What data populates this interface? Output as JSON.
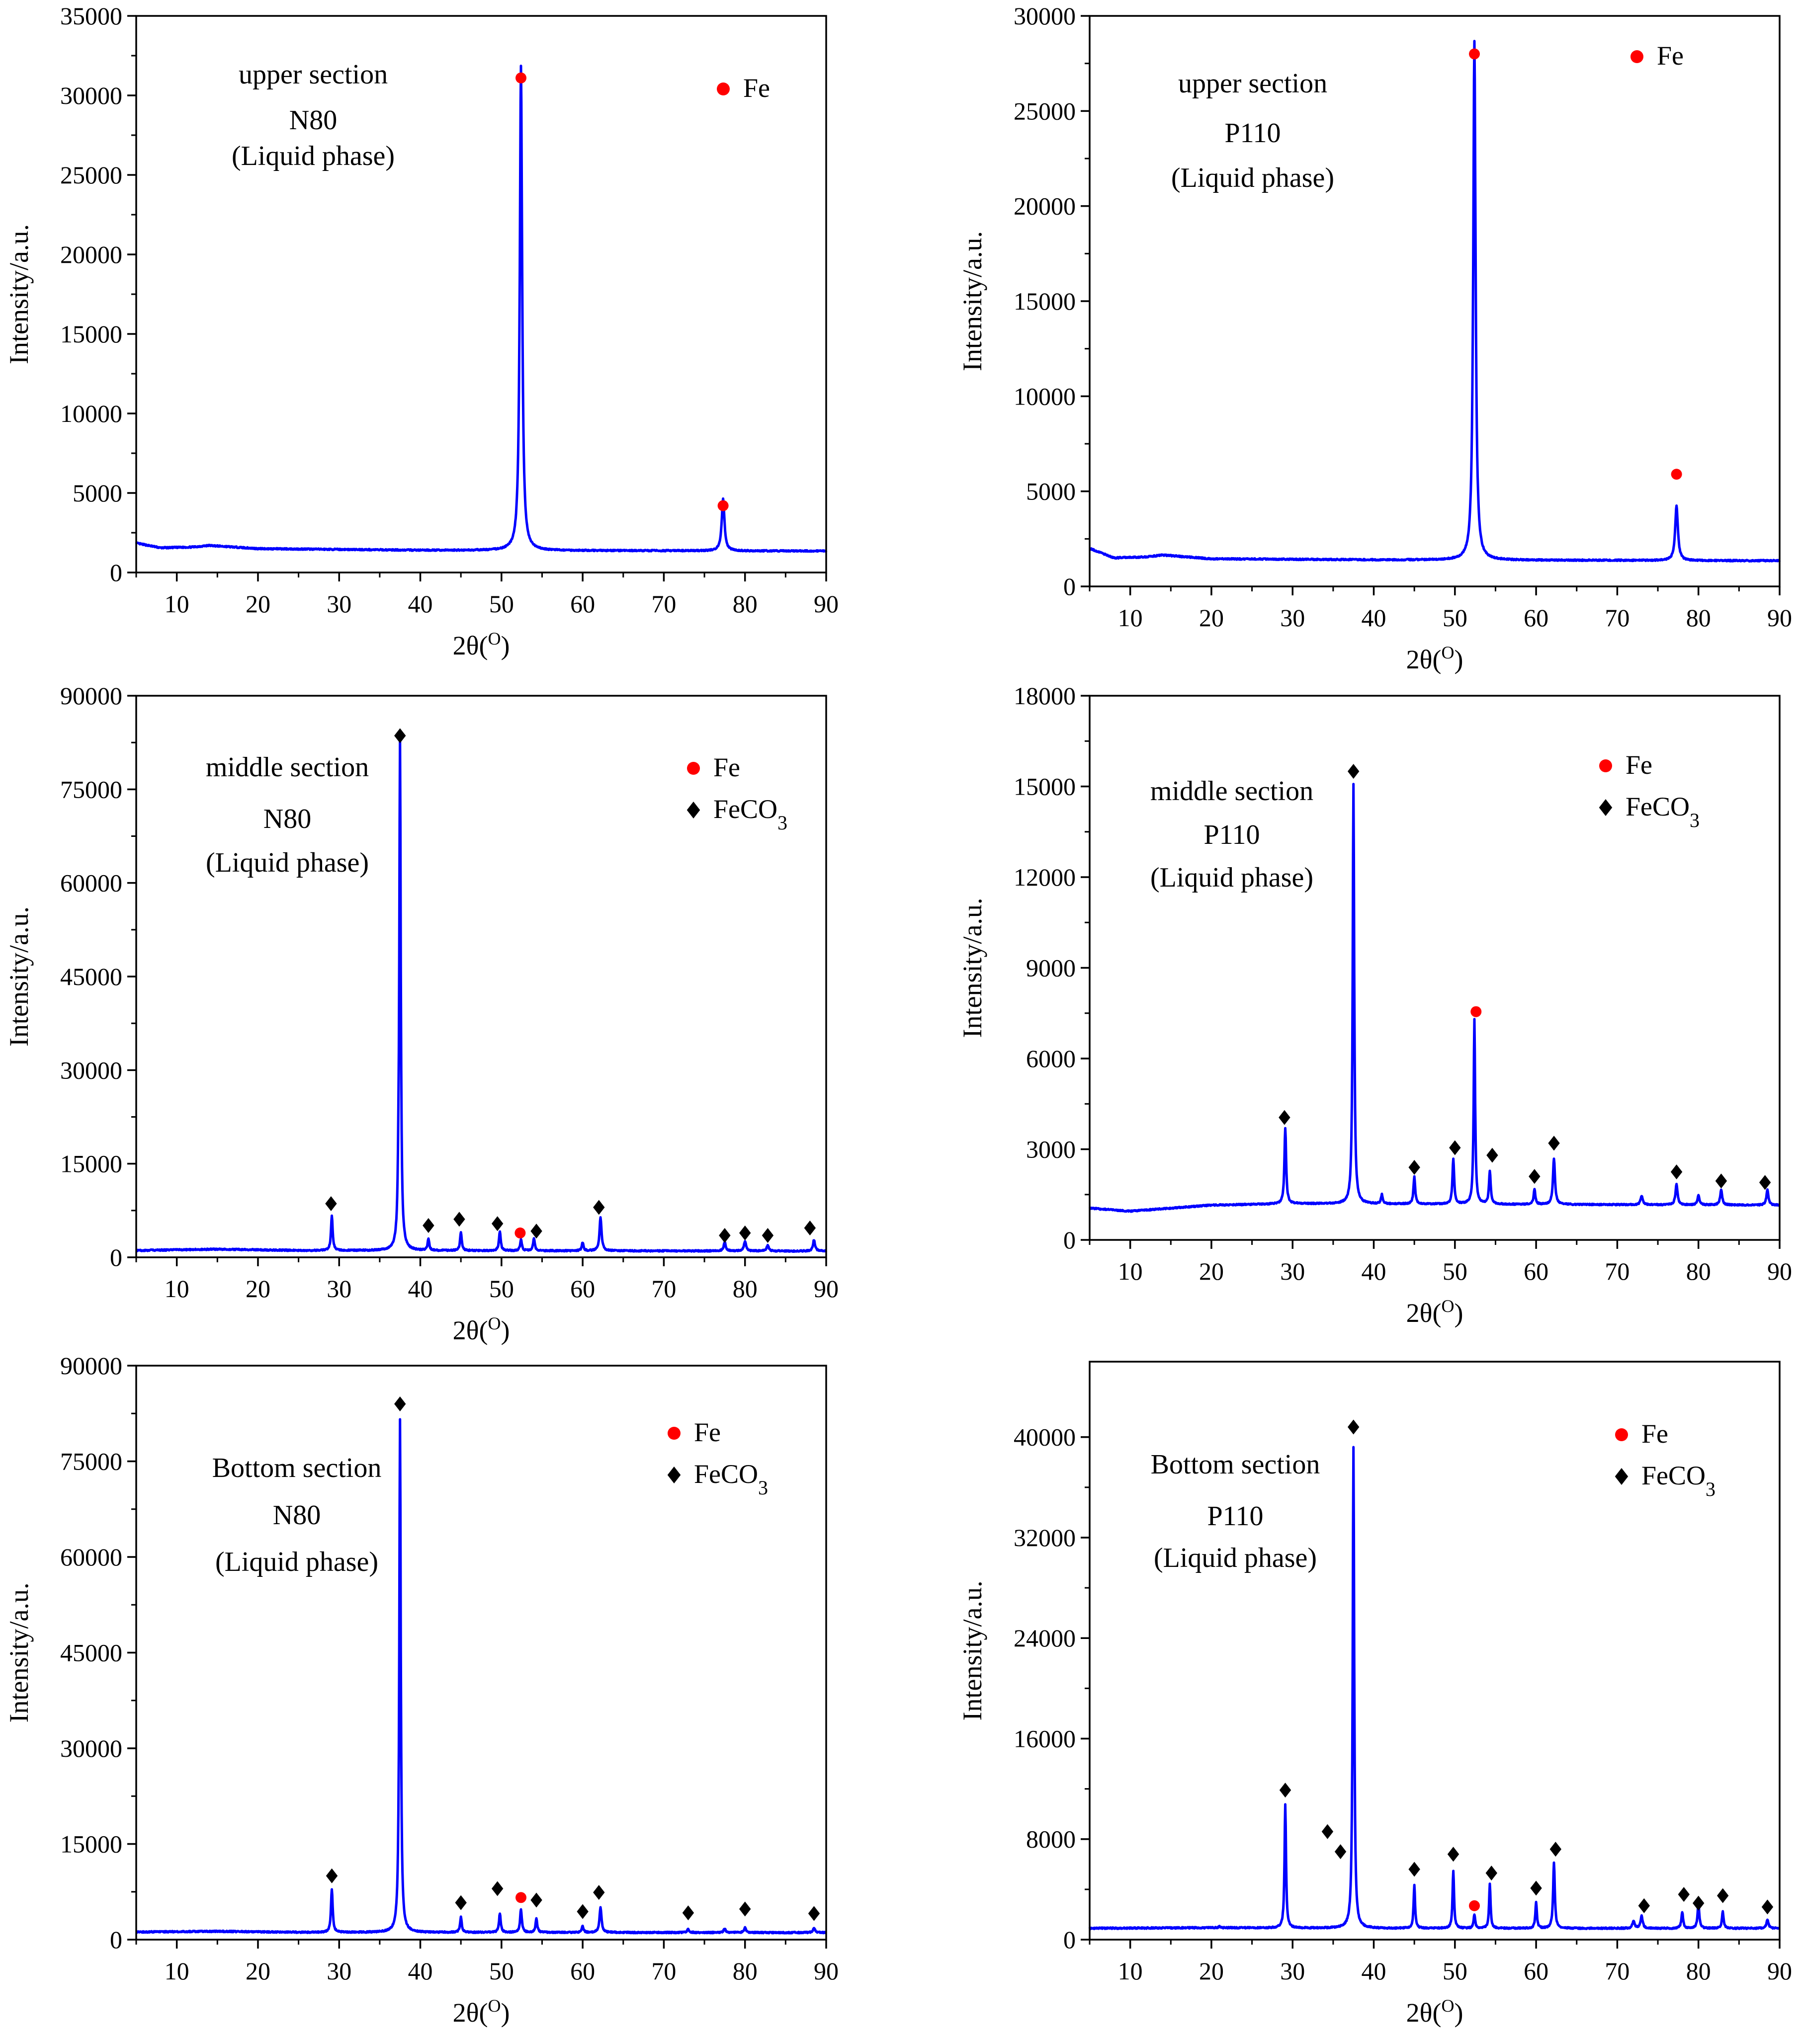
{
  "chart_data": [
    {
      "type": "line",
      "annotation_lines": [
        "upper section",
        "N80",
        "(Liquid phase)"
      ],
      "xlabel": "2θ(O)",
      "ylabel": "Intensity/a.u.",
      "xlim": [
        5,
        90
      ],
      "ylim": [
        0,
        35000
      ],
      "xticks": [
        10,
        20,
        30,
        40,
        50,
        60,
        70,
        80,
        90
      ],
      "yticks": [
        0,
        5000,
        10000,
        15000,
        20000,
        25000,
        30000,
        35000
      ],
      "legend": [
        {
          "label": "Fe",
          "marker": "dot"
        }
      ],
      "legend_position": "top-right",
      "baseline": [
        [
          5,
          1850
        ],
        [
          8,
          1550
        ],
        [
          12,
          1600
        ],
        [
          14,
          1700
        ],
        [
          20,
          1500
        ],
        [
          40,
          1400
        ],
        [
          90,
          1350
        ]
      ],
      "peaks": [
        {
          "x": 52.4,
          "y": 30500,
          "w": 0.35
        },
        {
          "x": 77.3,
          "y": 3300,
          "w": 0.4
        }
      ],
      "markers": [
        {
          "x": 52.4,
          "y": 31100,
          "type": "dot"
        },
        {
          "x": 77.3,
          "y": 4200,
          "type": "dot"
        }
      ]
    },
    {
      "type": "line",
      "annotation_lines": [
        "upper section",
        "P110",
        "(Liquid phase)"
      ],
      "xlabel": "2θ(O)",
      "ylabel": "Intensity/a.u.",
      "xlim": [
        5,
        90
      ],
      "ylim": [
        0,
        30000
      ],
      "xticks": [
        10,
        20,
        30,
        40,
        50,
        60,
        70,
        80,
        90
      ],
      "yticks": [
        0,
        5000,
        10000,
        15000,
        20000,
        25000,
        30000
      ],
      "legend": [
        {
          "label": "Fe",
          "marker": "dot"
        }
      ],
      "legend_position": "top-right",
      "baseline": [
        [
          5,
          2000
        ],
        [
          8,
          1500
        ],
        [
          12,
          1550
        ],
        [
          14,
          1650
        ],
        [
          20,
          1450
        ],
        [
          40,
          1400
        ],
        [
          90,
          1350
        ]
      ],
      "peaks": [
        {
          "x": 52.4,
          "y": 27300,
          "w": 0.35
        },
        {
          "x": 77.3,
          "y": 2900,
          "w": 0.4
        }
      ],
      "markers": [
        {
          "x": 52.4,
          "y": 28000,
          "type": "dot"
        },
        {
          "x": 77.3,
          "y": 5900,
          "type": "dot"
        }
      ]
    },
    {
      "type": "line",
      "annotation_lines": [
        "middle section",
        "N80",
        "(Liquid phase)"
      ],
      "xlabel": "2θ(O)",
      "ylabel": "Intensity/a.u.",
      "xlim": [
        5,
        90
      ],
      "ylim": [
        0,
        90000
      ],
      "xticks": [
        10,
        20,
        30,
        40,
        50,
        60,
        70,
        80,
        90
      ],
      "yticks": [
        0,
        15000,
        30000,
        45000,
        60000,
        75000,
        90000
      ],
      "legend": [
        {
          "label": "Fe",
          "marker": "dot"
        },
        {
          "label": "FeCO3",
          "marker": "diamond"
        }
      ],
      "legend_position": "top-right",
      "baseline": [
        [
          5,
          1100
        ],
        [
          15,
          1300
        ],
        [
          25,
          1100
        ],
        [
          90,
          1000
        ]
      ],
      "peaks": [
        {
          "x": 29.1,
          "y": 5500,
          "w": 0.25
        },
        {
          "x": 37.3,
          "y": 4000,
          "w": 0.2
        },
        {
          "x": 37.5,
          "y": 81500,
          "w": 0.22
        },
        {
          "x": 41.0,
          "y": 1800,
          "w": 0.25
        },
        {
          "x": 45.0,
          "y": 2900,
          "w": 0.25
        },
        {
          "x": 49.8,
          "y": 3100,
          "w": 0.25
        },
        {
          "x": 52.4,
          "y": 1800,
          "w": 0.25
        },
        {
          "x": 54.0,
          "y": 2000,
          "w": 0.25
        },
        {
          "x": 60.0,
          "y": 1300,
          "w": 0.25
        },
        {
          "x": 62.2,
          "y": 5300,
          "w": 0.3
        },
        {
          "x": 77.5,
          "y": 1400,
          "w": 0.3
        },
        {
          "x": 80.0,
          "y": 1600,
          "w": 0.3
        },
        {
          "x": 82.8,
          "y": 900,
          "w": 0.3
        },
        {
          "x": 88.5,
          "y": 1800,
          "w": 0.3
        }
      ],
      "markers": [
        {
          "x": 29.0,
          "y": 8600,
          "type": "diamond"
        },
        {
          "x": 37.5,
          "y": 83600,
          "type": "diamond"
        },
        {
          "x": 41.0,
          "y": 5100,
          "type": "diamond"
        },
        {
          "x": 44.8,
          "y": 6100,
          "type": "diamond"
        },
        {
          "x": 49.5,
          "y": 5400,
          "type": "diamond"
        },
        {
          "x": 52.3,
          "y": 3900,
          "type": "dot"
        },
        {
          "x": 54.3,
          "y": 4200,
          "type": "diamond"
        },
        {
          "x": 62.0,
          "y": 8000,
          "type": "diamond"
        },
        {
          "x": 77.5,
          "y": 3500,
          "type": "diamond"
        },
        {
          "x": 80.0,
          "y": 3900,
          "type": "diamond"
        },
        {
          "x": 82.8,
          "y": 3500,
          "type": "diamond"
        },
        {
          "x": 88.0,
          "y": 4700,
          "type": "diamond"
        }
      ]
    },
    {
      "type": "line",
      "annotation_lines": [
        "middle section",
        "P110",
        "(Liquid phase)"
      ],
      "xlabel": "2θ(O)",
      "ylabel": "Intensity/a.u.",
      "xlim": [
        5,
        90
      ],
      "ylim": [
        0,
        18000
      ],
      "xticks": [
        10,
        20,
        30,
        40,
        50,
        60,
        70,
        80,
        90
      ],
      "yticks": [
        0,
        3000,
        6000,
        9000,
        12000,
        15000,
        18000
      ],
      "legend": [
        {
          "label": "Fe",
          "marker": "dot"
        },
        {
          "label": "FeCO3",
          "marker": "diamond"
        }
      ],
      "legend_position": "top-right",
      "baseline": [
        [
          5,
          1050
        ],
        [
          10,
          950
        ],
        [
          15,
          1050
        ],
        [
          20,
          1150
        ],
        [
          30,
          1200
        ],
        [
          90,
          1150
        ]
      ],
      "peaks": [
        {
          "x": 29.1,
          "y": 2500,
          "w": 0.25
        },
        {
          "x": 37.5,
          "y": 13900,
          "w": 0.22
        },
        {
          "x": 41.0,
          "y": 300,
          "w": 0.25
        },
        {
          "x": 45.0,
          "y": 900,
          "w": 0.25
        },
        {
          "x": 49.8,
          "y": 1500,
          "w": 0.25
        },
        {
          "x": 52.4,
          "y": 6100,
          "w": 0.22
        },
        {
          "x": 54.3,
          "y": 1100,
          "w": 0.25
        },
        {
          "x": 59.8,
          "y": 500,
          "w": 0.25
        },
        {
          "x": 62.2,
          "y": 1500,
          "w": 0.3
        },
        {
          "x": 73.0,
          "y": 300,
          "w": 0.3
        },
        {
          "x": 77.3,
          "y": 700,
          "w": 0.3
        },
        {
          "x": 80.0,
          "y": 300,
          "w": 0.3
        },
        {
          "x": 82.8,
          "y": 500,
          "w": 0.3
        },
        {
          "x": 88.5,
          "y": 500,
          "w": 0.3
        }
      ],
      "markers": [
        {
          "x": 29.0,
          "y": 4050,
          "type": "diamond"
        },
        {
          "x": 37.5,
          "y": 15500,
          "type": "diamond"
        },
        {
          "x": 45.0,
          "y": 2400,
          "type": "diamond"
        },
        {
          "x": 50.0,
          "y": 3050,
          "type": "diamond"
        },
        {
          "x": 52.6,
          "y": 7550,
          "type": "dot"
        },
        {
          "x": 54.6,
          "y": 2800,
          "type": "diamond"
        },
        {
          "x": 59.8,
          "y": 2100,
          "type": "diamond"
        },
        {
          "x": 62.2,
          "y": 3200,
          "type": "diamond"
        },
        {
          "x": 77.3,
          "y": 2250,
          "type": "diamond"
        },
        {
          "x": 82.8,
          "y": 1950,
          "type": "diamond"
        },
        {
          "x": 88.2,
          "y": 1900,
          "type": "diamond"
        }
      ]
    },
    {
      "type": "line",
      "annotation_lines": [
        "Bottom section",
        "N80",
        "(Liquid phase)"
      ],
      "xlabel": "2θ(O)",
      "ylabel": "Intensity/a.u.",
      "xlim": [
        5,
        90
      ],
      "ylim": [
        0,
        90000
      ],
      "xticks": [
        10,
        20,
        30,
        40,
        50,
        60,
        70,
        80,
        90
      ],
      "yticks": [
        0,
        15000,
        30000,
        45000,
        60000,
        75000,
        90000
      ],
      "legend": [
        {
          "label": "Fe",
          "marker": "dot"
        },
        {
          "label": "FeCO3",
          "marker": "diamond"
        }
      ],
      "legend_position": "top-right",
      "baseline": [
        [
          5,
          1200
        ],
        [
          15,
          1300
        ],
        [
          25,
          1150
        ],
        [
          90,
          1100
        ]
      ],
      "peaks": [
        {
          "x": 29.1,
          "y": 6800,
          "w": 0.25
        },
        {
          "x": 37.5,
          "y": 80500,
          "w": 0.22
        },
        {
          "x": 45.0,
          "y": 2400,
          "w": 0.25
        },
        {
          "x": 49.8,
          "y": 3000,
          "w": 0.25
        },
        {
          "x": 52.4,
          "y": 3700,
          "w": 0.25
        },
        {
          "x": 54.3,
          "y": 2200,
          "w": 0.25
        },
        {
          "x": 60.0,
          "y": 1000,
          "w": 0.25
        },
        {
          "x": 62.2,
          "y": 3900,
          "w": 0.3
        },
        {
          "x": 73.0,
          "y": 500,
          "w": 0.3
        },
        {
          "x": 77.5,
          "y": 600,
          "w": 0.3
        },
        {
          "x": 80.0,
          "y": 800,
          "w": 0.3
        },
        {
          "x": 88.5,
          "y": 700,
          "w": 0.3
        }
      ],
      "markers": [
        {
          "x": 29.1,
          "y": 10000,
          "type": "diamond"
        },
        {
          "x": 37.5,
          "y": 84000,
          "type": "diamond"
        },
        {
          "x": 45.0,
          "y": 5800,
          "type": "diamond"
        },
        {
          "x": 49.5,
          "y": 8000,
          "type": "diamond"
        },
        {
          "x": 52.4,
          "y": 6600,
          "type": "dot"
        },
        {
          "x": 54.3,
          "y": 6200,
          "type": "diamond"
        },
        {
          "x": 60.0,
          "y": 4400,
          "type": "diamond"
        },
        {
          "x": 62.0,
          "y": 7400,
          "type": "diamond"
        },
        {
          "x": 73.0,
          "y": 4200,
          "type": "diamond"
        },
        {
          "x": 80.0,
          "y": 4800,
          "type": "diamond"
        },
        {
          "x": 88.5,
          "y": 4100,
          "type": "diamond"
        }
      ]
    },
    {
      "type": "line",
      "annotation_lines": [
        "Bottom section",
        "P110",
        "(Liquid phase)"
      ],
      "xlabel": "2θ(O)",
      "ylabel": "Intensity/a.u.",
      "xlim": [
        5,
        90
      ],
      "ylim": [
        0,
        46000
      ],
      "xticks": [
        10,
        20,
        30,
        40,
        50,
        60,
        70,
        80,
        90
      ],
      "yticks": [
        0,
        8000,
        16000,
        24000,
        32000,
        40000
      ],
      "legend": [
        {
          "label": "Fe",
          "marker": "dot"
        },
        {
          "label": "FeCO3",
          "marker": "diamond"
        }
      ],
      "legend_position": "top-right",
      "baseline": [
        [
          5,
          900
        ],
        [
          20,
          950
        ],
        [
          40,
          900
        ],
        [
          90,
          900
        ]
      ],
      "peaks": [
        {
          "x": 21.0,
          "y": 100,
          "w": 0.3
        },
        {
          "x": 29.1,
          "y": 9800,
          "w": 0.22
        },
        {
          "x": 37.5,
          "y": 38300,
          "w": 0.22
        },
        {
          "x": 45.0,
          "y": 3400,
          "w": 0.22
        },
        {
          "x": 49.8,
          "y": 4600,
          "w": 0.22
        },
        {
          "x": 52.4,
          "y": 1100,
          "w": 0.22
        },
        {
          "x": 54.3,
          "y": 3500,
          "w": 0.22
        },
        {
          "x": 60.0,
          "y": 2100,
          "w": 0.22
        },
        {
          "x": 62.2,
          "y": 5200,
          "w": 0.25
        },
        {
          "x": 72.0,
          "y": 600,
          "w": 0.3
        },
        {
          "x": 73.0,
          "y": 1000,
          "w": 0.3
        },
        {
          "x": 78.0,
          "y": 1300,
          "w": 0.25
        },
        {
          "x": 80.0,
          "y": 2000,
          "w": 0.25
        },
        {
          "x": 83.0,
          "y": 1300,
          "w": 0.25
        },
        {
          "x": 88.5,
          "y": 700,
          "w": 0.3
        }
      ],
      "markers": [
        {
          "x": 29.1,
          "y": 11900,
          "type": "diamond"
        },
        {
          "x": 34.3,
          "y": 8600,
          "type": "diamond"
        },
        {
          "x": 35.9,
          "y": 7000,
          "type": "diamond"
        },
        {
          "x": 37.5,
          "y": 40800,
          "type": "diamond"
        },
        {
          "x": 45.0,
          "y": 5600,
          "type": "diamond"
        },
        {
          "x": 49.8,
          "y": 6800,
          "type": "diamond"
        },
        {
          "x": 52.4,
          "y": 2700,
          "type": "dot"
        },
        {
          "x": 54.5,
          "y": 5300,
          "type": "diamond"
        },
        {
          "x": 60.0,
          "y": 4100,
          "type": "diamond"
        },
        {
          "x": 62.4,
          "y": 7200,
          "type": "diamond"
        },
        {
          "x": 73.3,
          "y": 2700,
          "type": "diamond"
        },
        {
          "x": 78.2,
          "y": 3600,
          "type": "diamond"
        },
        {
          "x": 80.0,
          "y": 2900,
          "type": "diamond"
        },
        {
          "x": 83.0,
          "y": 3500,
          "type": "diamond"
        },
        {
          "x": 88.5,
          "y": 2600,
          "type": "diamond"
        }
      ]
    }
  ],
  "colors": {
    "trace": "#0000ff",
    "fe_marker": "#ff0000",
    "feco3_marker": "#000000",
    "axis": "#000000"
  }
}
